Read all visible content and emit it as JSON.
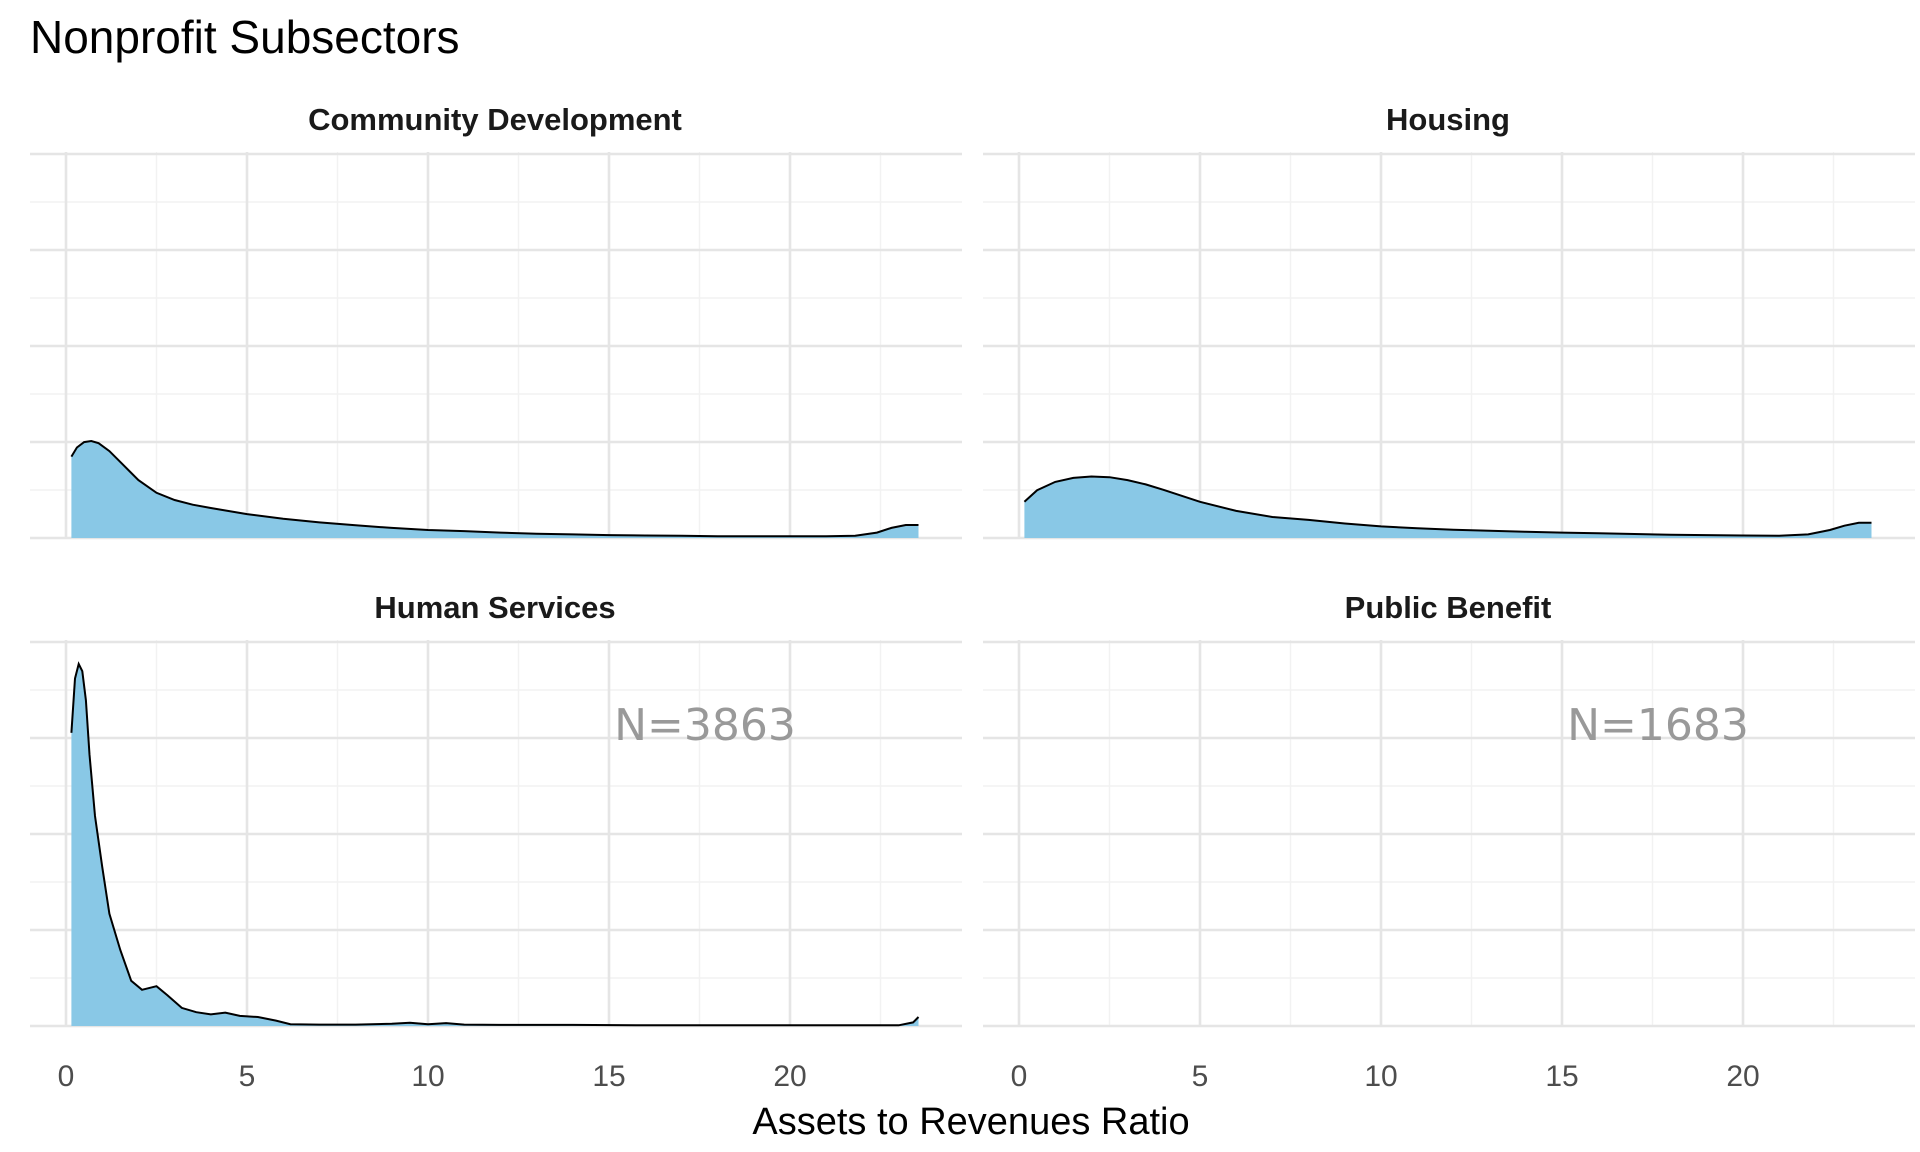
{
  "chart_data": {
    "type": "area",
    "title": "Nonprofit Subsectors",
    "xlabel": "Assets to Revenues Ratio",
    "ylabel": "",
    "xlim": [
      -1.0,
      24.5
    ],
    "x_ticks": [
      0,
      5,
      10,
      15,
      20
    ],
    "x_tick_labels": [
      "0",
      "5",
      "10",
      "15",
      "20"
    ],
    "y_ticks_shown": false,
    "grid": true,
    "fill_color": "#89c8e6",
    "line_color": "#000000",
    "annotation_color": "#999999",
    "panels": [
      {
        "name": "Community Development",
        "ylim": [
          0,
          1
        ],
        "x": [
          0.15,
          0.3,
          0.5,
          0.7,
          0.9,
          1.2,
          1.6,
          2.0,
          2.5,
          3.0,
          3.5,
          4.0,
          5.0,
          6.0,
          7.0,
          8.0,
          9.0,
          10.0,
          11.0,
          12.0,
          13.0,
          14.0,
          15.0,
          16.0,
          17.0,
          18.0,
          19.0,
          20.0,
          21.0,
          21.8,
          22.4,
          22.8,
          23.2,
          23.55
        ],
        "density": [
          0.225,
          0.25,
          0.265,
          0.268,
          0.262,
          0.24,
          0.2,
          0.16,
          0.125,
          0.105,
          0.092,
          0.083,
          0.066,
          0.053,
          0.043,
          0.035,
          0.028,
          0.022,
          0.019,
          0.015,
          0.012,
          0.01,
          0.008,
          0.007,
          0.006,
          0.005,
          0.005,
          0.005,
          0.005,
          0.006,
          0.015,
          0.028,
          0.036,
          0.036
        ],
        "annotation": ""
      },
      {
        "name": "Housing",
        "ylim": [
          0,
          1
        ],
        "x": [
          0.15,
          0.5,
          1.0,
          1.5,
          2.0,
          2.5,
          3.0,
          3.5,
          4.0,
          5.0,
          6.0,
          7.0,
          8.0,
          9.0,
          10.0,
          11.0,
          12.0,
          13.0,
          14.0,
          15.0,
          16.0,
          17.0,
          18.0,
          19.0,
          20.0,
          21.0,
          21.8,
          22.4,
          22.8,
          23.2,
          23.55
        ],
        "density": [
          0.1,
          0.132,
          0.155,
          0.166,
          0.17,
          0.168,
          0.16,
          0.148,
          0.133,
          0.1,
          0.075,
          0.058,
          0.05,
          0.04,
          0.032,
          0.027,
          0.023,
          0.02,
          0.017,
          0.015,
          0.013,
          0.011,
          0.009,
          0.008,
          0.007,
          0.006,
          0.01,
          0.022,
          0.034,
          0.042,
          0.042
        ],
        "annotation": ""
      },
      {
        "name": "Human Services",
        "ylim": [
          0,
          1
        ],
        "x": [
          0.15,
          0.25,
          0.35,
          0.45,
          0.55,
          0.65,
          0.8,
          1.0,
          1.2,
          1.5,
          1.8,
          2.1,
          2.5,
          2.8,
          3.2,
          3.6,
          4.0,
          4.4,
          4.8,
          5.3,
          5.8,
          6.2,
          7.0,
          8.0,
          9.0,
          9.5,
          10.0,
          10.5,
          11.0,
          12.0,
          14.0,
          16.0,
          18.0,
          20.0,
          22.0,
          23.0,
          23.4,
          23.55
        ],
        "density": [
          0.81,
          0.96,
          1.0,
          0.98,
          0.9,
          0.75,
          0.58,
          0.44,
          0.31,
          0.21,
          0.125,
          0.1,
          0.11,
          0.085,
          0.05,
          0.038,
          0.032,
          0.037,
          0.028,
          0.025,
          0.015,
          0.005,
          0.004,
          0.004,
          0.006,
          0.009,
          0.005,
          0.008,
          0.004,
          0.003,
          0.003,
          0.002,
          0.002,
          0.002,
          0.002,
          0.002,
          0.01,
          0.025
        ],
        "annotation": "N=3863"
      },
      {
        "name": "Public Benefit",
        "ylim": [
          0,
          1
        ],
        "x": [],
        "density": [],
        "annotation": "N=1683"
      }
    ]
  }
}
